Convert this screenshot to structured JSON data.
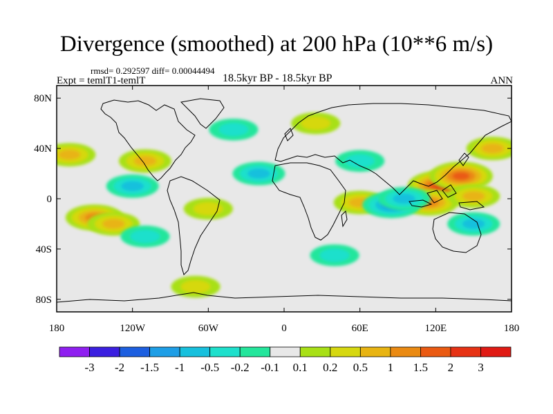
{
  "header": {
    "title": "Divergence (smoothed) at 200 hPa (10**6 m/s)",
    "stats": "rmsd= 0.292597 diff= 0.00044494",
    "experiment": "Expt = temlT1-temlT",
    "period": "18.5kyr BP - 18.5kyr BP",
    "season": "ANN"
  },
  "colors": {
    "background_zero": "#e8e8e8",
    "coastline": "#000000",
    "frame": "#000000"
  },
  "chart_data": {
    "type": "contour_map",
    "title": "Divergence (smoothed) at 200 hPa (10**6 m/s)",
    "variable": "Divergence (smoothed)",
    "level": "200 hPa",
    "units": "10**6 m/s",
    "projection": "cylindrical equidistant",
    "xlim": [
      -180,
      180
    ],
    "ylim": [
      -90,
      90
    ],
    "x_ticks": [
      {
        "value": -180,
        "label": "180"
      },
      {
        "value": -120,
        "label": "120W"
      },
      {
        "value": -60,
        "label": "60W"
      },
      {
        "value": 0,
        "label": "0"
      },
      {
        "value": 60,
        "label": "60E"
      },
      {
        "value": 120,
        "label": "120E"
      },
      {
        "value": 180,
        "label": "180"
      }
    ],
    "y_ticks": [
      {
        "value": 80,
        "label": "80N"
      },
      {
        "value": 40,
        "label": "40N"
      },
      {
        "value": 0,
        "label": "0"
      },
      {
        "value": -40,
        "label": "40S"
      },
      {
        "value": -80,
        "label": "80S"
      }
    ],
    "colorbar": {
      "labels": [
        "-3",
        "-2",
        "-1.5",
        "-1",
        "-0.5",
        "-0.2",
        "-0.1",
        "0.1",
        "0.2",
        "0.5",
        "1",
        "1.5",
        "2",
        "3"
      ],
      "colors": [
        "#8f1ff0",
        "#3b1fe0",
        "#1d5fe0",
        "#1e9ee6",
        "#17c0dd",
        "#1ee0cc",
        "#24e69c",
        "#e8e8e8",
        "#a8e016",
        "#d6d810",
        "#e8b412",
        "#ea8a12",
        "#ea5a12",
        "#e63214",
        "#e01a14"
      ]
    },
    "features": [
      {
        "lon": 125,
        "lat": 10,
        "value": 2.0
      },
      {
        "lon": 140,
        "lat": 18,
        "value": 1.5
      },
      {
        "lon": 115,
        "lat": -3,
        "value": 1.0
      },
      {
        "lon": 150,
        "lat": 2,
        "value": 0.5
      },
      {
        "lon": -150,
        "lat": -15,
        "value": 1.0
      },
      {
        "lon": -135,
        "lat": -20,
        "value": 0.5
      },
      {
        "lon": -110,
        "lat": 30,
        "value": 0.5
      },
      {
        "lon": -170,
        "lat": 35,
        "value": 0.5
      },
      {
        "lon": 60,
        "lat": -3,
        "value": 0.5
      },
      {
        "lon": 85,
        "lat": -5,
        "value": -1.0
      },
      {
        "lon": 95,
        "lat": 0,
        "value": -0.5
      },
      {
        "lon": -120,
        "lat": 10,
        "value": -0.5
      },
      {
        "lon": -20,
        "lat": 20,
        "value": -0.5
      },
      {
        "lon": -40,
        "lat": 55,
        "value": -0.2
      },
      {
        "lon": 60,
        "lat": 30,
        "value": -0.2
      },
      {
        "lon": 150,
        "lat": -20,
        "value": -0.5
      },
      {
        "lon": -110,
        "lat": -30,
        "value": -0.2
      },
      {
        "lon": 40,
        "lat": -45,
        "value": -0.2
      },
      {
        "lon": -60,
        "lat": -8,
        "value": 0.2
      },
      {
        "lon": 25,
        "lat": 60,
        "value": 0.2
      },
      {
        "lon": 165,
        "lat": 40,
        "value": 0.5
      },
      {
        "lon": -70,
        "lat": -70,
        "value": 0.2
      }
    ]
  }
}
